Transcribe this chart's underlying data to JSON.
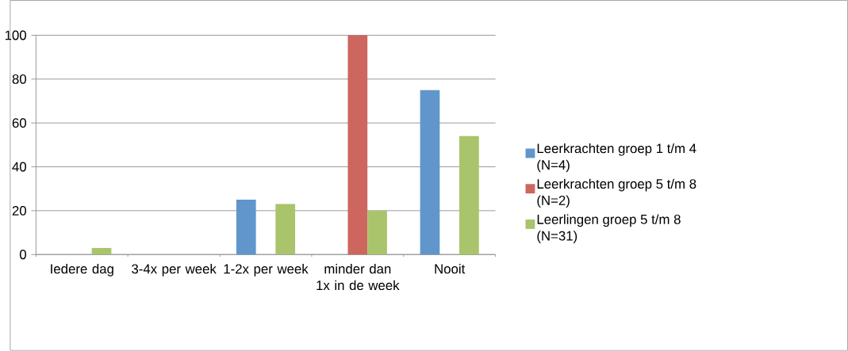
{
  "chart_data": {
    "type": "bar",
    "categories": [
      "Iedere dag",
      "3-4x per week",
      "1-2x per week",
      "minder dan 1x in de week",
      "Nooit"
    ],
    "series": [
      {
        "name": "Leerkrachten groep 1 t/m 4 (N=4)",
        "color": "#6096cb",
        "values": [
          0,
          0,
          25,
          0,
          75
        ]
      },
      {
        "name": "Leerkrachten groep 5 t/m 8 (N=2)",
        "color": "#cd665e",
        "values": [
          0,
          0,
          0,
          100,
          0
        ]
      },
      {
        "name": "Leerlingen groep 5 t/m 8 (N=31)",
        "color": "#a9c46a",
        "values": [
          3,
          0,
          23,
          20,
          54
        ]
      }
    ],
    "ylim": [
      0,
      100
    ],
    "yticks": [
      0,
      20,
      40,
      60,
      80,
      100
    ],
    "grid": "y",
    "legend": "right"
  }
}
